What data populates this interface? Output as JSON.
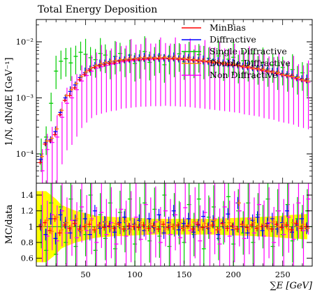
{
  "chart_data": {
    "type": "scatter",
    "title": "Total Energy Deposition",
    "xlabel": "∑E [GeV]",
    "ylabel": "1/N, dN/dE [GeV⁻¹]",
    "ratio_ylabel": "MC/data",
    "xlim": [
      0,
      280
    ],
    "ylim": [
      3e-05,
      0.025
    ],
    "yscale": "log",
    "ratio_ylim": [
      0.5,
      1.55
    ],
    "x_ticks": [
      50,
      100,
      150,
      200,
      250
    ],
    "x_tick_labels": [
      "50",
      "100",
      "150",
      "200",
      "250"
    ],
    "y_ticks": [
      0.0001,
      0.001,
      0.01
    ],
    "y_tick_labels": [
      "10⁻⁴",
      "10⁻³",
      "10⁻²"
    ],
    "ratio_ticks": [
      0.6,
      0.8,
      1,
      1.2,
      1.4
    ],
    "ratio_tick_labels": [
      "0.6",
      "0.8",
      "1",
      "1.2",
      "1.4"
    ],
    "legend_position": "top-right",
    "colors": {
      "MinBias": "#ff0000",
      "Diffractive": "#0000ff",
      "Single Diffractive": "#00cc00",
      "Double Diffractive": "#ff8800",
      "Non Diffractive": "#ff00ff",
      "data_band": "#ffff00"
    },
    "x": [
      5,
      10,
      15,
      20,
      25,
      30,
      35,
      40,
      45,
      50,
      55,
      60,
      65,
      70,
      75,
      80,
      85,
      90,
      95,
      100,
      105,
      110,
      115,
      120,
      125,
      130,
      135,
      140,
      145,
      150,
      155,
      160,
      165,
      170,
      175,
      180,
      185,
      190,
      195,
      200,
      205,
      210,
      215,
      220,
      225,
      230,
      235,
      240,
      245,
      250,
      255,
      260,
      265,
      270,
      275
    ],
    "series": [
      {
        "name": "MinBias",
        "values": [
          7e-05,
          0.00015,
          0.00017,
          0.00022,
          0.0005,
          0.0009,
          0.0011,
          0.0015,
          0.0021,
          0.0026,
          0.0031,
          0.0035,
          0.0037,
          0.0039,
          0.0041,
          0.0042,
          0.0045,
          0.0046,
          0.0047,
          0.0048,
          0.0049,
          0.0049,
          0.005,
          0.005,
          0.005,
          0.0051,
          0.005,
          0.005,
          0.0049,
          0.0049,
          0.0048,
          0.0047,
          0.0046,
          0.0045,
          0.0044,
          0.0043,
          0.0042,
          0.0041,
          0.004,
          0.0039,
          0.0038,
          0.0036,
          0.0035,
          0.0034,
          0.0033,
          0.0031,
          0.003,
          0.0029,
          0.0027,
          0.0026,
          0.0025,
          0.0024,
          0.0022,
          0.0021,
          0.002
        ]
      },
      {
        "name": "Diffractive",
        "values": [
          8e-05,
          0.00016,
          0.00018,
          0.00025,
          0.00055,
          0.001,
          0.0013,
          0.0017,
          0.0023,
          0.0028,
          0.0033,
          0.0038,
          0.0039,
          0.0042,
          0.0044,
          0.0045,
          0.0047,
          0.0048,
          0.0049,
          0.005,
          0.0052,
          0.0051,
          0.0052,
          0.0053,
          0.0051,
          0.0052,
          0.0051,
          0.0052,
          0.005,
          0.005,
          0.0049,
          0.0048,
          0.0047,
          0.0046,
          0.0045,
          0.0044,
          0.0043,
          0.0042,
          0.0041,
          0.004,
          0.0039,
          0.0037,
          0.0036,
          0.0035,
          0.0034,
          0.0032,
          0.0031,
          0.003,
          0.0028,
          0.0027,
          0.0026,
          0.0025,
          0.0023,
          0.0022,
          0.0021
        ]
      },
      {
        "name": "Single Diffractive",
        "values": [
          0.0001,
          0.0002,
          0.0008,
          0.003,
          0.0045,
          0.005,
          0.0042,
          0.0055,
          0.0065,
          0.006,
          0.0052,
          0.0048,
          0.0062,
          0.0058,
          0.0045,
          0.0055,
          0.0062,
          0.0049,
          0.0058,
          0.0041,
          0.0046,
          0.0067,
          0.0043,
          0.0052,
          0.0058,
          0.0039,
          0.0055,
          0.0049,
          0.0061,
          0.0044,
          0.0053,
          0.0047,
          0.0059,
          0.0045,
          0.0051,
          0.0048,
          0.0056,
          0.0042,
          0.0049,
          0.0053,
          0.0038,
          0.0046,
          0.0041,
          0.0045,
          0.0036,
          0.0042,
          0.0033,
          0.0039,
          0.0029,
          0.0035,
          0.0027,
          0.0032,
          0.0024,
          0.0028,
          0.0022
        ]
      },
      {
        "name": "Double Diffractive",
        "values": [
          9e-05,
          0.00017,
          0.00019,
          0.00028,
          0.0006,
          0.0011,
          0.0014,
          0.0018,
          0.0024,
          0.0029,
          0.0034,
          0.0038,
          0.0041,
          0.0043,
          0.0045,
          0.0046,
          0.0048,
          0.0049,
          0.005,
          0.0051,
          0.0052,
          0.0052,
          0.0053,
          0.0052,
          0.0052,
          0.0053,
          0.0051,
          0.0052,
          0.0051,
          0.005,
          0.0049,
          0.0048,
          0.0047,
          0.0046,
          0.0045,
          0.0044,
          0.0043,
          0.0042,
          0.0041,
          0.004,
          0.0038,
          0.0037,
          0.0036,
          0.0034,
          0.0033,
          0.0032,
          0.003,
          0.0029,
          0.0028,
          0.0026,
          0.0025,
          0.0024,
          0.0023,
          0.0021,
          0.002
        ]
      },
      {
        "name": "Non Diffractive",
        "values": [
          5e-05,
          0.00012,
          0.00016,
          0.0002,
          0.00045,
          0.0008,
          0.001,
          0.0014,
          0.002,
          0.0025,
          0.003,
          0.0034,
          0.0036,
          0.0038,
          0.004,
          0.0041,
          0.0044,
          0.0045,
          0.0046,
          0.0047,
          0.0048,
          0.0048,
          0.0049,
          0.0049,
          0.0049,
          0.005,
          0.0049,
          0.0049,
          0.0048,
          0.0048,
          0.0047,
          0.0046,
          0.0045,
          0.0044,
          0.0043,
          0.0042,
          0.0041,
          0.004,
          0.0039,
          0.0038,
          0.0037,
          0.0035,
          0.0034,
          0.0033,
          0.0032,
          0.003,
          0.0029,
          0.0028,
          0.0026,
          0.0025,
          0.0024,
          0.0023,
          0.0021,
          0.002,
          0.0019
        ]
      }
    ],
    "ratio_series": [
      {
        "name": "MinBias",
        "values": [
          1.0,
          1.05,
          0.95,
          1.1,
          0.92,
          1.02,
          0.98,
          1.04,
          0.97,
          1.0,
          1.03,
          0.96,
          1.02,
          0.99,
          1.01,
          0.98,
          1.03,
          0.97,
          1.01,
          1.0,
          0.99,
          1.02,
          0.98,
          1.01,
          0.97,
          1.03,
          0.99,
          1.0,
          1.02,
          0.98,
          1.01,
          0.97,
          1.03,
          0.99,
          1.0,
          1.02,
          0.96,
          1.04,
          0.98,
          1.01,
          0.97,
          1.03,
          0.99,
          1.02,
          0.98,
          1.0,
          1.01,
          0.97,
          1.03,
          0.99,
          1.02,
          0.96,
          1.04,
          0.98,
          1.0
        ]
      },
      {
        "name": "Diffractive",
        "values": [
          1.02,
          0.9,
          1.1,
          0.85,
          1.15,
          1.05,
          0.92,
          1.08,
          0.95,
          1.1,
          0.9,
          1.2,
          0.98,
          1.06,
          1.0,
          0.93,
          1.05,
          1.12,
          0.97,
          1.03,
          1.08,
          0.95,
          1.1,
          0.99,
          1.15,
          0.92,
          1.05,
          1.2,
          0.96,
          1.04,
          1.1,
          0.93,
          1.02,
          1.13,
          0.98,
          1.07,
          0.9,
          1.05,
          1.16,
          0.96,
          1.3,
          1.0,
          0.92,
          1.08,
          1.12,
          0.95,
          1.04,
          1.1,
          0.97,
          1.05,
          1.2,
          0.93,
          1.02,
          1.1,
          0.98
        ]
      },
      {
        "name": "Single Diffractive",
        "values": [
          1.0,
          0.7,
          1.3,
          0.65,
          1.25,
          0.8,
          1.35,
          0.75,
          1.2,
          0.9,
          1.4,
          0.7,
          1.15,
          0.85,
          1.3,
          0.72,
          1.18,
          0.95,
          1.35,
          0.78,
          1.1,
          1.3,
          0.82,
          1.22,
          0.88,
          1.4,
          0.75,
          1.15,
          1.05,
          0.8,
          1.28,
          0.9,
          1.35,
          0.72,
          1.12,
          1.25,
          0.85,
          1.05,
          1.38,
          0.78,
          1.2,
          0.92,
          1.3,
          0.8,
          1.15,
          1.0,
          1.35,
          0.75,
          1.2,
          0.9,
          1.28,
          0.82,
          1.1,
          1.0,
          1.2
        ]
      },
      {
        "name": "Double Diffractive",
        "values": [
          1.0,
          1.08,
          0.94,
          1.12,
          0.96,
          1.05,
          1.0,
          1.1,
          0.95,
          1.03,
          1.08,
          0.97,
          1.02,
          1.06,
          0.98,
          1.04,
          1.0,
          1.07,
          0.96,
          1.02,
          1.05,
          0.98,
          1.04,
          1.0,
          1.06,
          0.97,
          1.03,
          1.0,
          1.05,
          0.98,
          1.02,
          1.06,
          0.97,
          1.04,
          1.0,
          1.08,
          0.96,
          1.02,
          1.05,
          0.98,
          1.3,
          1.02,
          0.97,
          1.05,
          1.0,
          1.03,
          0.98,
          1.06,
          1.0,
          1.04,
          0.97,
          1.05,
          1.0,
          1.03,
          0.98
        ]
      },
      {
        "name": "Non Diffractive",
        "values": [
          1.0,
          0.88,
          1.15,
          0.82,
          1.2,
          0.92,
          1.08,
          0.86,
          1.25,
          0.95,
          1.1,
          0.8,
          1.18,
          0.9,
          1.05,
          0.78,
          1.22,
          0.88,
          1.0,
          1.12,
          0.84,
          1.28,
          0.92,
          1.06,
          0.8,
          1.2,
          0.9,
          1.15,
          0.86,
          1.24,
          0.95,
          1.05,
          0.82,
          1.18,
          0.92,
          1.1,
          0.78,
          1.25,
          0.88,
          1.0,
          1.2,
          0.85,
          1.1,
          0.92,
          1.28,
          0.88,
          1.05,
          0.8,
          1.2,
          0.9,
          1.12,
          0.84,
          1.3,
          0.95,
          1.35
        ]
      }
    ],
    "data_band": {
      "x": [
        5,
        10,
        15,
        20,
        25,
        30,
        40,
        50,
        60,
        70,
        80,
        90,
        100,
        120,
        140,
        160,
        180,
        200,
        220,
        240,
        260,
        275
      ],
      "lower": [
        0.55,
        0.55,
        0.6,
        0.65,
        0.72,
        0.75,
        0.8,
        0.83,
        0.86,
        0.87,
        0.88,
        0.88,
        0.89,
        0.9,
        0.9,
        0.9,
        0.9,
        0.89,
        0.88,
        0.87,
        0.85,
        0.84
      ],
      "upper": [
        1.45,
        1.45,
        1.4,
        1.35,
        1.28,
        1.25,
        1.2,
        1.17,
        1.14,
        1.13,
        1.12,
        1.12,
        1.11,
        1.1,
        1.1,
        1.1,
        1.1,
        1.11,
        1.12,
        1.13,
        1.15,
        1.16
      ]
    }
  }
}
